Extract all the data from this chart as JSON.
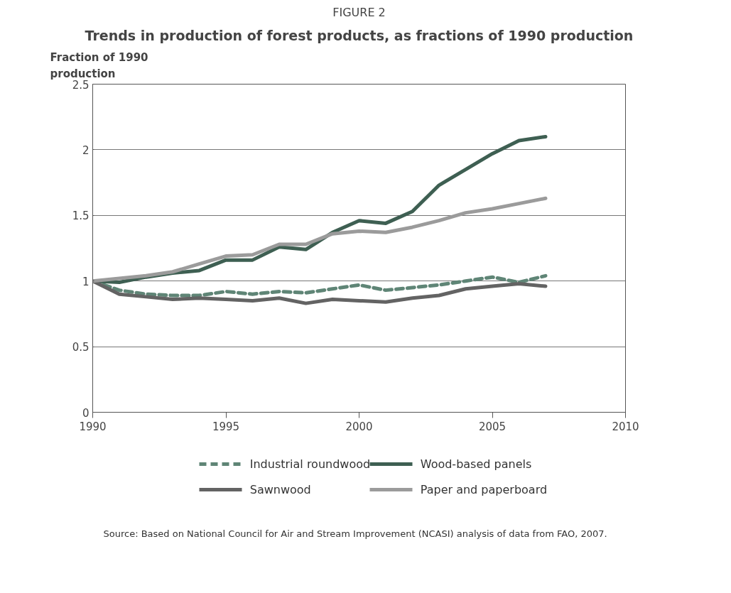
{
  "chart_data": {
    "type": "line",
    "title": "FIGURE 2",
    "subtitle": "Trends in production of forest products, as fractions of 1990 production",
    "ylabel": "Fraction of 1990 production",
    "x": [
      1990,
      1991,
      1992,
      1993,
      1994,
      1995,
      1996,
      1997,
      1998,
      1999,
      2000,
      2001,
      2002,
      2003,
      2004,
      2005,
      2006,
      2007
    ],
    "series": [
      {
        "name": "Industrial roundwood",
        "color": "#5f8576",
        "line_style": "dashed",
        "values": [
          1.0,
          0.93,
          0.9,
          0.89,
          0.89,
          0.92,
          0.9,
          0.92,
          0.91,
          0.94,
          0.97,
          0.93,
          0.95,
          0.97,
          1.0,
          1.03,
          0.99,
          1.04
        ]
      },
      {
        "name": "Wood-based panels",
        "color": "#3e5f52",
        "line_style": "solid",
        "values": [
          1.0,
          0.99,
          1.03,
          1.06,
          1.08,
          1.16,
          1.16,
          1.26,
          1.24,
          1.37,
          1.46,
          1.44,
          1.53,
          1.73,
          1.85,
          1.97,
          2.07,
          2.1
        ]
      },
      {
        "name": "Sawnwood",
        "color": "#636363",
        "line_style": "solid",
        "values": [
          1.0,
          0.9,
          0.88,
          0.86,
          0.87,
          0.86,
          0.85,
          0.87,
          0.83,
          0.86,
          0.85,
          0.84,
          0.87,
          0.89,
          0.94,
          0.96,
          0.98,
          0.96
        ]
      },
      {
        "name": "Paper and paperboard",
        "color": "#9b9b9b",
        "line_style": "solid",
        "values": [
          1.0,
          1.02,
          1.04,
          1.07,
          1.13,
          1.19,
          1.2,
          1.28,
          1.28,
          1.36,
          1.38,
          1.37,
          1.41,
          1.46,
          1.52,
          1.55,
          1.59,
          1.63
        ]
      }
    ],
    "xlim": [
      1990,
      2010
    ],
    "xticks": [
      1990,
      1995,
      2000,
      2005,
      2010
    ],
    "ylim": [
      0,
      2.5
    ],
    "yticks": [
      0,
      0.5,
      1,
      1.5,
      2,
      2.5
    ],
    "grid": "y",
    "legend": "bottom",
    "marker": "none",
    "annotations": [
      "Source: Based on National Council for Air and Stream Improvement (NCASI) analysis of data from FAO, 2007."
    ]
  }
}
